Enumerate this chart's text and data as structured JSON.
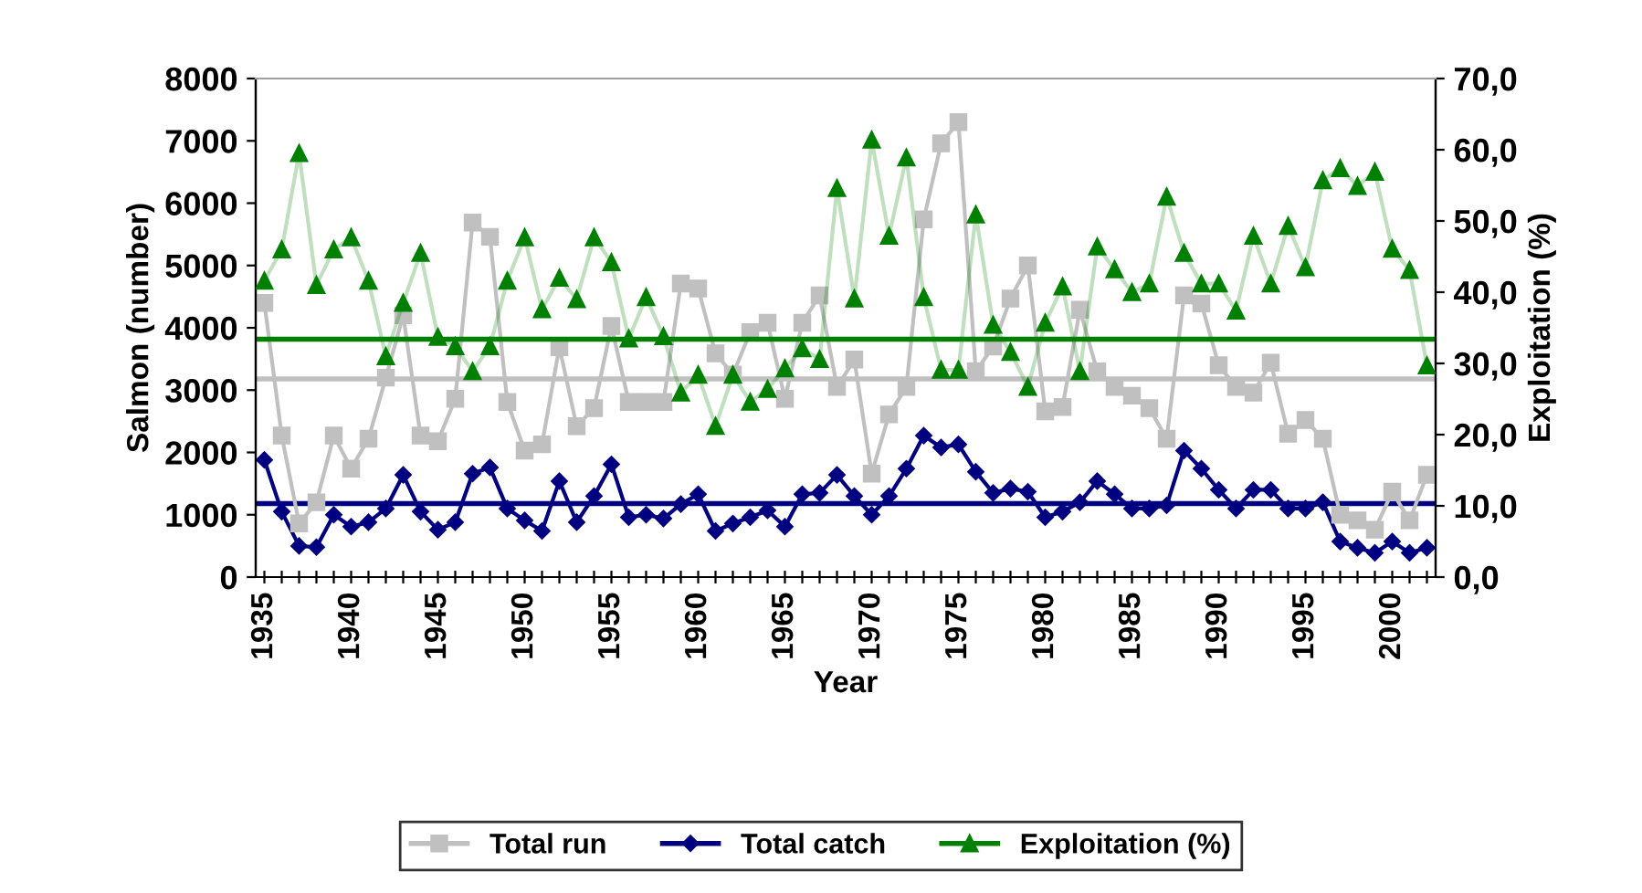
{
  "chart_data": {
    "type": "line",
    "xlabel": "Year",
    "ylabel": "Salmon (number)",
    "y2label": "Exploitation (%)",
    "categories": [
      "1935",
      null,
      null,
      null,
      null,
      "1940",
      null,
      null,
      null,
      null,
      "1945",
      null,
      null,
      null,
      null,
      "1950",
      null,
      null,
      null,
      null,
      "1955",
      null,
      null,
      null,
      null,
      "1960",
      null,
      null,
      null,
      null,
      "1965",
      null,
      null,
      null,
      null,
      "1970",
      null,
      null,
      null,
      null,
      "1975",
      null,
      null,
      null,
      null,
      "1980",
      null,
      null,
      null,
      null,
      "1985",
      null,
      null,
      null,
      null,
      "1990",
      null,
      null,
      null,
      null,
      "1995",
      null,
      null,
      null,
      null,
      "2000",
      null,
      null
    ],
    "series": [
      {
        "name": "Total run",
        "color": "#c0c0c0",
        "marker": "square",
        "values": [
          4400,
          2270,
          860,
          1200,
          2270,
          1740,
          2220,
          3200,
          4200,
          2270,
          2180,
          2860,
          5690,
          5460,
          2810,
          2030,
          2130,
          3690,
          2420,
          2710,
          4030,
          2810,
          2810,
          2810,
          4710,
          4630,
          3590,
          3250,
          3930,
          4080,
          2860,
          4080,
          4520,
          3050,
          3490,
          1660,
          2610,
          3050,
          5740,
          6960,
          7300,
          3300,
          3700,
          4470,
          5000,
          2660,
          2730,
          4290,
          3300,
          3050,
          2910,
          2710,
          2220,
          4520,
          4390,
          3400,
          3050,
          2960,
          3440,
          2300,
          2520,
          2220,
          1000,
          910,
          760,
          1370,
          910,
          1640
        ]
      },
      {
        "name": "Total catch",
        "color": "#000080",
        "marker": "diamond",
        "values": [
          1880,
          1050,
          500,
          480,
          1000,
          810,
          880,
          1100,
          1640,
          1050,
          760,
          880,
          1660,
          1760,
          1100,
          910,
          740,
          1540,
          880,
          1300,
          1810,
          960,
          1000,
          940,
          1170,
          1330,
          740,
          860,
          960,
          1070,
          810,
          1330,
          1350,
          1640,
          1300,
          1000,
          1300,
          1740,
          2270,
          2080,
          2130,
          1690,
          1350,
          1420,
          1370,
          960,
          1050,
          1200,
          1540,
          1330,
          1100,
          1100,
          1150,
          2030,
          1740,
          1400,
          1100,
          1400,
          1400,
          1100,
          1100,
          1200,
          570,
          470,
          390,
          570,
          390,
          470
        ]
      },
      {
        "name": "Exploitation (%)",
        "color": "#008000",
        "marker": "triangle",
        "axis": "y2",
        "values": [
          41.6,
          46.0,
          59.5,
          41.0,
          46.0,
          47.7,
          41.6,
          31.0,
          38.5,
          45.5,
          33.7,
          32.4,
          28.9,
          32.4,
          41.6,
          47.7,
          37.6,
          42.0,
          39.0,
          47.7,
          44.2,
          33.5,
          39.3,
          33.8,
          25.9,
          28.4,
          21.2,
          28.4,
          24.6,
          26.4,
          29.3,
          32.1,
          30.6,
          54.6,
          39.1,
          61.4,
          47.9,
          58.9,
          39.3,
          29.1,
          29.1,
          50.9,
          35.4,
          31.6,
          26.7,
          35.7,
          40.8,
          28.9,
          46.4,
          43.2,
          40.0,
          41.2,
          53.4,
          45.5,
          41.2,
          41.2,
          37.4,
          47.9,
          41.2,
          49.3,
          43.5,
          55.7,
          57.4,
          54.9,
          56.9,
          46.1,
          43.1,
          29.7
        ]
      }
    ],
    "ylim": [
      0,
      8000
    ],
    "yticks": [
      0,
      1000,
      2000,
      3000,
      4000,
      5000,
      6000,
      7000,
      8000
    ],
    "y2lim": [
      0,
      70
    ],
    "y2ticks": [
      {
        "value": 0,
        "label": "0,0"
      },
      {
        "value": 10,
        "label": "10,0"
      },
      {
        "value": 20,
        "label": "20,0"
      },
      {
        "value": 30,
        "label": "30,0"
      },
      {
        "value": 40,
        "label": "40,0"
      },
      {
        "value": 50,
        "label": "50,0"
      },
      {
        "value": 60,
        "label": "60,0"
      },
      {
        "value": 70,
        "label": "70,0"
      }
    ],
    "ref_lines": [
      {
        "axis": "y",
        "value": 3180,
        "color": "#c0c0c0"
      },
      {
        "axis": "y",
        "value": 1180,
        "color": "#000080"
      },
      {
        "axis": "y2",
        "value": 33.4,
        "color": "#008000"
      }
    ],
    "legend": "bottom",
    "grid": false
  }
}
